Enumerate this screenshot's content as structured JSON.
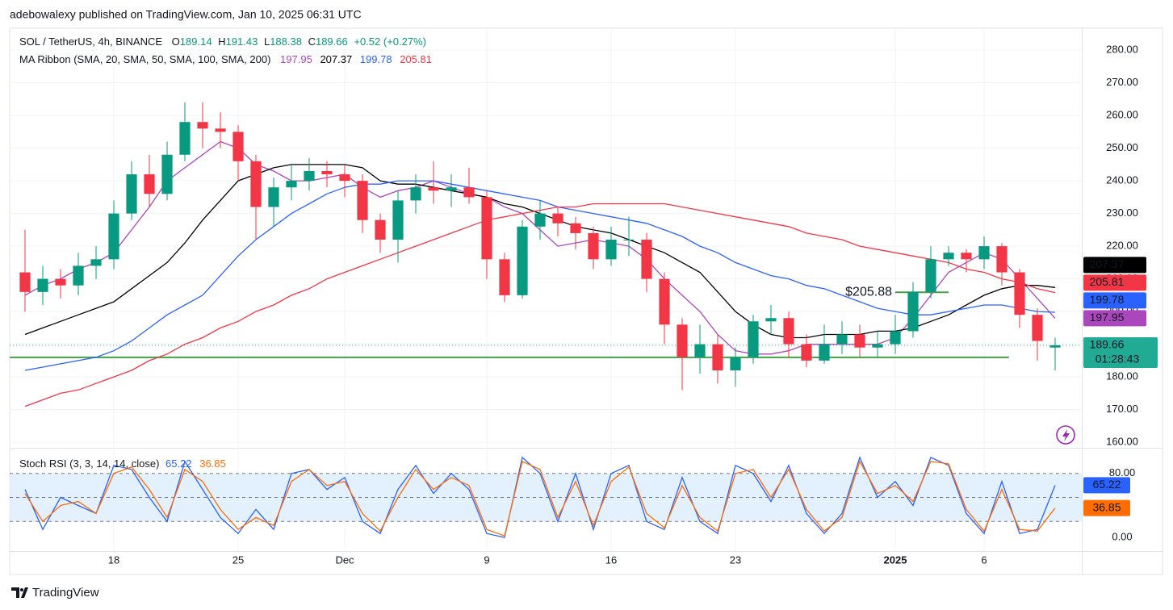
{
  "header": {
    "published": "adebowalexy published on TradingView.com, Jan 10, 2025 06:31 UTC",
    "symbol": "SOL / TetherUS, 4h, BINANCE",
    "ohlc": [
      {
        "label": "O",
        "value": 189.14
      },
      {
        "label": "H",
        "value": 191.43
      },
      {
        "label": "L",
        "value": 188.38
      },
      {
        "label": "C",
        "value": 189.66
      }
    ],
    "change": "+0.52 (+0.27%)",
    "ma_title": "MA Ribbon (SMA, 20, SMA, 50, SMA, 100, SMA, 200)"
  },
  "chart_data": [
    {
      "type": "candlestick",
      "categories": [
        null,
        null,
        null,
        null,
        null,
        "18",
        null,
        null,
        null,
        null,
        null,
        null,
        "25",
        null,
        null,
        null,
        null,
        null,
        "Dec",
        null,
        null,
        null,
        null,
        null,
        null,
        null,
        "9",
        null,
        null,
        null,
        null,
        null,
        null,
        "16",
        null,
        null,
        null,
        null,
        null,
        null,
        "23",
        null,
        null,
        null,
        null,
        null,
        null,
        null,
        null,
        "2025",
        null,
        null,
        null,
        null,
        "6",
        null,
        null,
        null,
        null
      ],
      "open": [
        212,
        206,
        210,
        208,
        214,
        216,
        230,
        242,
        236,
        248,
        258,
        256,
        255,
        246,
        232,
        238,
        240,
        243,
        242,
        240,
        228,
        222,
        234,
        238,
        237,
        238,
        235,
        216,
        205,
        226,
        230,
        227,
        224,
        216,
        222,
        222,
        210,
        196,
        186,
        190,
        182,
        186,
        197,
        198,
        190,
        185,
        190,
        193,
        189,
        190,
        194,
        206,
        216,
        218,
        216,
        220,
        212,
        199,
        189
      ],
      "high": [
        225,
        214,
        213,
        218,
        220,
        234,
        246,
        248,
        252,
        264,
        264,
        261,
        257,
        248,
        241,
        245,
        247,
        246,
        245,
        242,
        230,
        237,
        242,
        246,
        242,
        244,
        237,
        218,
        228,
        234,
        232,
        229,
        226,
        226,
        229,
        224,
        212,
        198,
        196,
        193,
        189,
        199,
        202,
        200,
        193,
        196,
        197,
        196,
        194,
        199,
        209,
        220,
        220,
        219,
        223,
        221,
        213,
        201,
        192
      ],
      "low": [
        200,
        202,
        204,
        205,
        210,
        213,
        228,
        232,
        234,
        246,
        250,
        250,
        240,
        222,
        226,
        234,
        237,
        238,
        235,
        224,
        218,
        215,
        230,
        233,
        232,
        233,
        210,
        203,
        204,
        222,
        223,
        219,
        213,
        214,
        217,
        206,
        190,
        176,
        181,
        178,
        177,
        184,
        193,
        186,
        183,
        184,
        187,
        186,
        186,
        187,
        192,
        204,
        214,
        212,
        213,
        208,
        195,
        185,
        182
      ],
      "close": [
        206,
        210,
        208,
        214,
        216,
        230,
        242,
        236,
        248,
        258,
        256,
        255,
        246,
        232,
        238,
        240,
        243,
        242,
        240,
        228,
        222,
        234,
        238,
        237,
        238,
        235,
        216,
        205,
        226,
        230,
        227,
        224,
        216,
        222,
        222,
        210,
        196,
        186,
        190,
        182,
        186,
        197,
        198,
        190,
        185,
        190,
        193,
        189,
        190,
        194,
        206,
        216,
        218,
        216,
        220,
        212,
        199,
        191,
        189.66
      ],
      "up_color": "#089981",
      "down_color": "#f23645",
      "series": [
        {
          "color": "#ab47bc",
          "values": [
            205,
            208,
            210,
            213,
            215,
            218,
            225,
            232,
            240,
            244,
            248,
            252,
            250,
            245,
            243,
            240,
            240,
            241,
            242,
            238,
            235,
            237,
            238,
            240,
            238,
            236,
            235,
            232,
            230,
            225,
            220,
            221,
            222,
            221,
            220,
            216,
            210,
            205,
            200,
            193,
            188,
            187,
            187,
            188,
            190,
            190,
            190,
            190,
            190,
            192,
            198,
            205,
            212,
            215,
            218,
            216,
            210,
            204,
            197.95
          ]
        },
        {
          "color": "#000000",
          "values": [
            193,
            195,
            197,
            199,
            201,
            203,
            207,
            211,
            215,
            221,
            228,
            234,
            240,
            242,
            244,
            245,
            245,
            245,
            245,
            244,
            240,
            239,
            239,
            238,
            237,
            236,
            235,
            233,
            232,
            230,
            228,
            226,
            225,
            224,
            222,
            220,
            218,
            215,
            212,
            206,
            200,
            196,
            193,
            192,
            192,
            193,
            193,
            193,
            194,
            194,
            195,
            197,
            199,
            202,
            205,
            207,
            208,
            208,
            207.37
          ]
        },
        {
          "color": "#2962ff",
          "values": [
            182,
            183,
            184,
            185,
            186,
            188,
            191,
            195,
            199,
            202,
            205,
            211,
            217,
            222,
            226,
            230,
            233,
            236,
            238,
            239,
            239,
            240,
            240,
            240,
            239,
            238,
            237,
            236,
            235,
            234,
            232,
            231,
            230,
            229,
            228,
            227,
            225,
            223,
            220,
            218,
            215,
            213,
            211,
            210,
            208,
            207,
            205,
            203,
            201,
            200,
            199,
            199,
            200,
            201,
            202,
            202,
            201,
            200,
            199.78
          ]
        },
        {
          "color": "#f23645",
          "values": [
            171,
            173,
            175,
            176,
            178,
            180,
            182,
            185,
            187,
            190,
            192,
            195,
            197,
            200,
            202,
            205,
            207,
            210,
            212,
            214,
            216,
            218,
            220,
            222,
            224,
            226,
            228,
            229,
            230,
            231,
            232,
            232,
            233,
            233,
            233,
            233,
            233,
            232,
            231,
            230,
            229,
            228,
            227,
            226,
            224,
            223,
            222,
            220,
            219,
            218,
            217,
            216,
            215,
            213,
            212,
            210,
            209,
            207,
            205.81
          ]
        }
      ],
      "ylim": [
        158.3,
        286.7
      ],
      "yticks": [
        {
          "value": 160,
          "label": "160.00"
        },
        {
          "value": 170,
          "label": "170.00"
        },
        {
          "value": 180,
          "label": "180.00"
        },
        {
          "value": 190,
          "label": "190.00"
        },
        {
          "value": 200,
          "label": "200.00"
        },
        {
          "value": 210,
          "label": "210.00"
        },
        {
          "value": 220,
          "label": "220.00"
        },
        {
          "value": 230,
          "label": "230.00"
        },
        {
          "value": 240,
          "label": "240.00"
        },
        {
          "value": 250,
          "label": "250.00"
        },
        {
          "value": 260,
          "label": "260.00"
        },
        {
          "value": 270,
          "label": "270.00"
        },
        {
          "value": 280,
          "label": "280.00"
        }
      ],
      "grid": true,
      "support_line": {
        "value": 186,
        "color": "#43a047"
      },
      "annotation": {
        "value": 205.88,
        "label": "$205.88",
        "color": "#43a047"
      },
      "price_color": "#22ab94",
      "countdown": "01:28:43"
    },
    {
      "type": "line",
      "title": "Stoch RSI (3, 3, 14, 14, close)",
      "series": [
        {
          "color": "#2962ff",
          "values": [
            60,
            10,
            50,
            40,
            30,
            90,
            85,
            50,
            20,
            95,
            60,
            25,
            5,
            35,
            10,
            80,
            85,
            60,
            75,
            20,
            5,
            60,
            90,
            55,
            80,
            60,
            5,
            0,
            100,
            80,
            20,
            80,
            10,
            80,
            90,
            20,
            10,
            75,
            20,
            5,
            90,
            80,
            45,
            90,
            30,
            5,
            30,
            100,
            50,
            70,
            40,
            100,
            90,
            30,
            5,
            70,
            5,
            10,
            65.22
          ]
        },
        {
          "color": "#ff6d00",
          "values": [
            55,
            20,
            40,
            45,
            30,
            80,
            88,
            60,
            25,
            85,
            70,
            35,
            10,
            25,
            15,
            70,
            85,
            65,
            70,
            30,
            8,
            50,
            85,
            60,
            75,
            65,
            10,
            2,
            95,
            85,
            25,
            70,
            15,
            70,
            88,
            30,
            12,
            65,
            25,
            8,
            80,
            85,
            50,
            85,
            35,
            8,
            25,
            95,
            55,
            65,
            45,
            95,
            92,
            35,
            8,
            60,
            10,
            8,
            36.85
          ]
        }
      ],
      "ylim": [
        -17,
        109
      ],
      "yticks": [
        {
          "value": 0,
          "label": "0.00"
        },
        {
          "value": 80,
          "label": "80.00"
        }
      ],
      "band": [
        20,
        80
      ],
      "band_lines": [
        20,
        50,
        80
      ],
      "band_color": "#e3f0fd"
    }
  ],
  "footer": {
    "brand": "TradingView"
  }
}
